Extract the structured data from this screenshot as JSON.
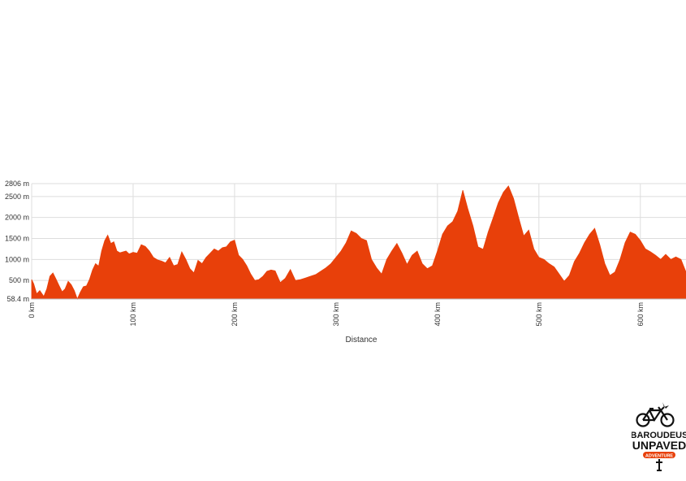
{
  "chart_data": {
    "type": "area",
    "xlabel": "Distance",
    "ylabel": "",
    "xlim": [
      0,
      645
    ],
    "ylim": [
      58.4,
      2806
    ],
    "x_ticks": [
      0,
      100,
      200,
      300,
      400,
      500,
      600
    ],
    "x_tick_labels": [
      "0 km",
      "100 km",
      "200 km",
      "300 km",
      "400 km",
      "500 km",
      "600 km"
    ],
    "y_ticks": [
      58.4,
      500,
      1000,
      1500,
      2000,
      2500,
      2806
    ],
    "y_tick_labels": [
      "58.4 m",
      "500 m",
      "1000 m",
      "1500 m",
      "2000 m",
      "2500 m",
      "2806 m"
    ],
    "grid": true,
    "fill_color": "#E8400A",
    "series": [
      {
        "x": [
          0,
          2,
          5,
          8,
          12,
          15,
          18,
          21,
          24,
          27,
          30,
          33,
          36,
          39,
          42,
          45,
          48,
          51,
          54,
          57,
          60,
          63,
          66,
          69,
          72,
          75,
          78,
          81,
          84,
          87,
          90,
          93,
          96,
          100,
          104,
          108,
          112,
          116,
          120,
          124,
          128,
          132,
          136,
          140,
          144,
          148,
          152,
          156,
          160,
          164,
          168,
          172,
          176,
          180,
          184,
          188,
          192,
          196,
          200,
          204,
          208,
          212,
          216,
          220,
          224,
          228,
          232,
          236,
          240,
          245,
          250,
          255,
          260,
          265,
          270,
          275,
          280,
          285,
          290,
          295,
          300,
          305,
          310,
          315,
          320,
          325,
          330,
          335,
          340,
          345,
          350,
          355,
          360,
          365,
          370,
          375,
          380,
          385,
          390,
          395,
          400,
          405,
          410,
          415,
          420,
          425,
          430,
          435,
          440,
          445,
          450,
          455,
          460,
          465,
          470,
          475,
          480,
          485,
          490,
          495,
          500,
          505,
          510,
          515,
          520,
          525,
          530,
          535,
          540,
          545,
          550,
          555,
          560,
          565,
          570,
          575,
          580,
          585,
          590,
          595,
          600,
          605,
          610,
          615,
          620,
          625,
          630,
          635,
          640,
          645
        ],
        "y": [
          520,
          420,
          180,
          260,
          120,
          300,
          600,
          680,
          530,
          380,
          230,
          300,
          480,
          400,
          260,
          58,
          220,
          350,
          370,
          520,
          750,
          900,
          840,
          1200,
          1450,
          1580,
          1380,
          1420,
          1200,
          1160,
          1180,
          1200,
          1130,
          1170,
          1150,
          1350,
          1310,
          1200,
          1050,
          990,
          960,
          920,
          1050,
          850,
          880,
          1180,
          1000,
          780,
          680,
          980,
          900,
          1050,
          1150,
          1250,
          1200,
          1280,
          1300,
          1420,
          1460,
          1100,
          1000,
          850,
          650,
          500,
          520,
          600,
          720,
          750,
          730,
          450,
          550,
          760,
          500,
          520,
          560,
          600,
          640,
          720,
          800,
          900,
          1050,
          1200,
          1400,
          1680,
          1620,
          1500,
          1450,
          1000,
          800,
          650,
          1000,
          1200,
          1380,
          1150,
          880,
          1100,
          1200,
          900,
          780,
          850,
          1200,
          1600,
          1800,
          1900,
          2150,
          2650,
          2200,
          1800,
          1300,
          1240,
          1650,
          2000,
          2350,
          2600,
          2750,
          2450,
          2000,
          1560,
          1700,
          1250,
          1050,
          1000,
          900,
          820,
          650,
          480,
          620,
          950,
          1150,
          1400,
          1600,
          1740,
          1350,
          900,
          620,
          700,
          1000,
          1400,
          1650,
          1600,
          1450,
          1250,
          1180,
          1100,
          1000,
          1120,
          1000,
          1060,
          1000,
          700
        ]
      }
    ]
  },
  "logo": {
    "line1": "BAROUDEUS",
    "line2": "UNPAVED",
    "badge": "ADVENTURE"
  }
}
